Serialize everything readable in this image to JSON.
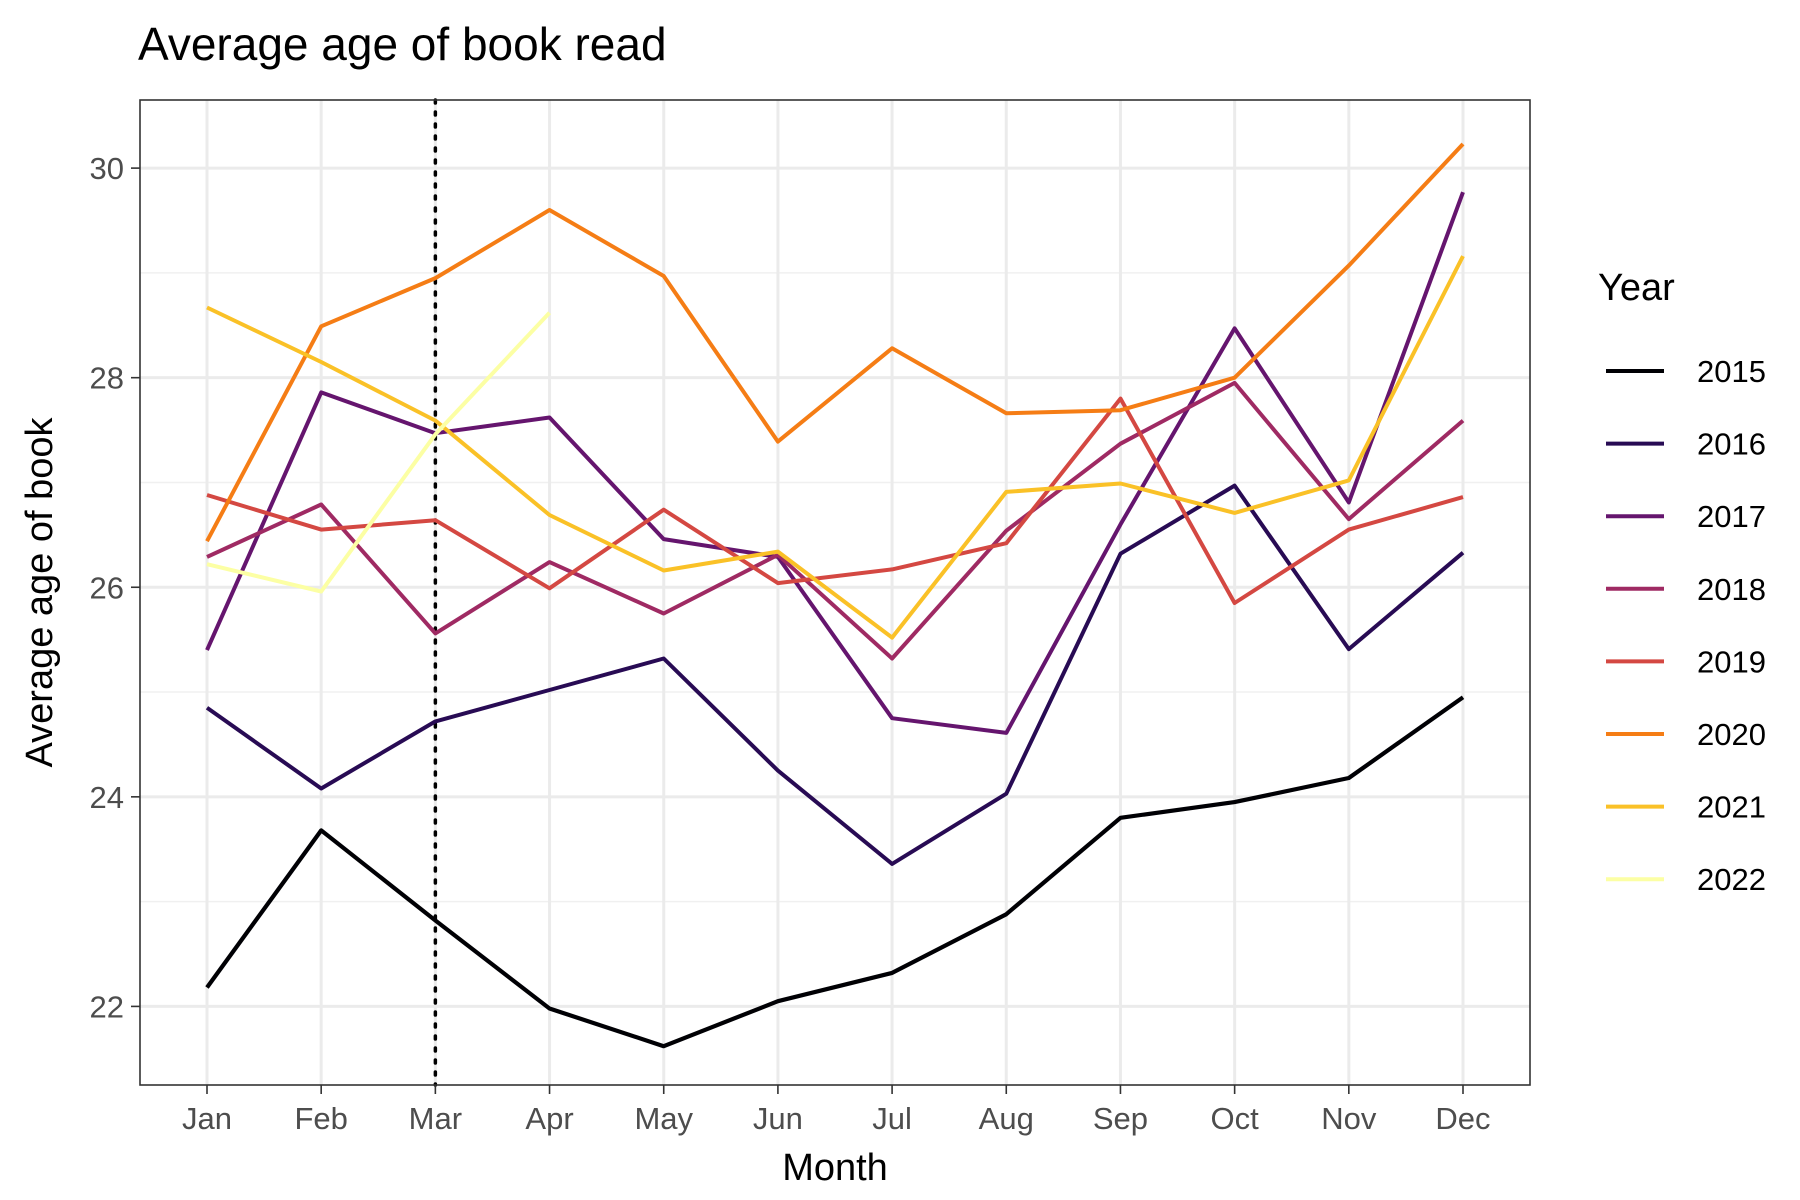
{
  "chart_data": {
    "type": "line",
    "title": "Average age of book read",
    "xlabel": "Month",
    "ylabel": "Average age of book",
    "categories": [
      "Jan",
      "Feb",
      "Mar",
      "Apr",
      "May",
      "Jun",
      "Jul",
      "Aug",
      "Sep",
      "Oct",
      "Nov",
      "Dec"
    ],
    "ylim": [
      21.25,
      30.65
    ],
    "yticks": [
      22,
      24,
      26,
      28,
      30
    ],
    "grid": true,
    "vline": {
      "category": "Mar",
      "style": "dotted"
    },
    "legend": {
      "title": "Year",
      "position": "right"
    },
    "series": [
      {
        "name": "2015",
        "color": "#000004",
        "values": [
          22.18,
          23.68,
          22.82,
          21.98,
          21.62,
          22.05,
          22.32,
          22.88,
          23.8,
          23.95,
          24.18,
          24.95
        ]
      },
      {
        "name": "2016",
        "color": "#280B54",
        "values": [
          24.85,
          24.08,
          24.72,
          25.02,
          25.32,
          24.25,
          23.36,
          24.03,
          26.32,
          26.97,
          25.41,
          26.33
        ]
      },
      {
        "name": "2017",
        "color": "#65156E",
        "values": [
          25.4,
          27.86,
          27.47,
          27.62,
          26.46,
          26.29,
          24.75,
          24.61,
          26.6,
          28.47,
          26.81,
          29.77
        ]
      },
      {
        "name": "2018",
        "color": "#9F2A63",
        "values": [
          26.29,
          26.79,
          25.56,
          26.24,
          25.75,
          26.31,
          25.32,
          26.54,
          27.37,
          27.95,
          26.65,
          27.59
        ]
      },
      {
        "name": "2019",
        "color": "#D44842",
        "values": [
          26.88,
          26.55,
          26.64,
          25.99,
          26.74,
          26.04,
          26.17,
          26.42,
          27.8,
          25.85,
          26.55,
          26.86
        ]
      },
      {
        "name": "2020",
        "color": "#F57D15",
        "values": [
          26.44,
          28.49,
          28.95,
          29.6,
          28.97,
          27.39,
          28.28,
          27.66,
          27.69,
          28.0,
          29.07,
          30.23
        ]
      },
      {
        "name": "2021",
        "color": "#FAC127",
        "values": [
          28.67,
          28.15,
          27.59,
          26.69,
          26.16,
          26.34,
          25.52,
          26.91,
          26.99,
          26.71,
          27.02,
          29.16
        ]
      },
      {
        "name": "2022",
        "color": "#FCFFA4",
        "values": [
          26.22,
          25.96,
          27.46,
          28.62,
          null,
          null,
          null,
          null,
          null,
          null,
          null,
          null
        ]
      }
    ]
  }
}
